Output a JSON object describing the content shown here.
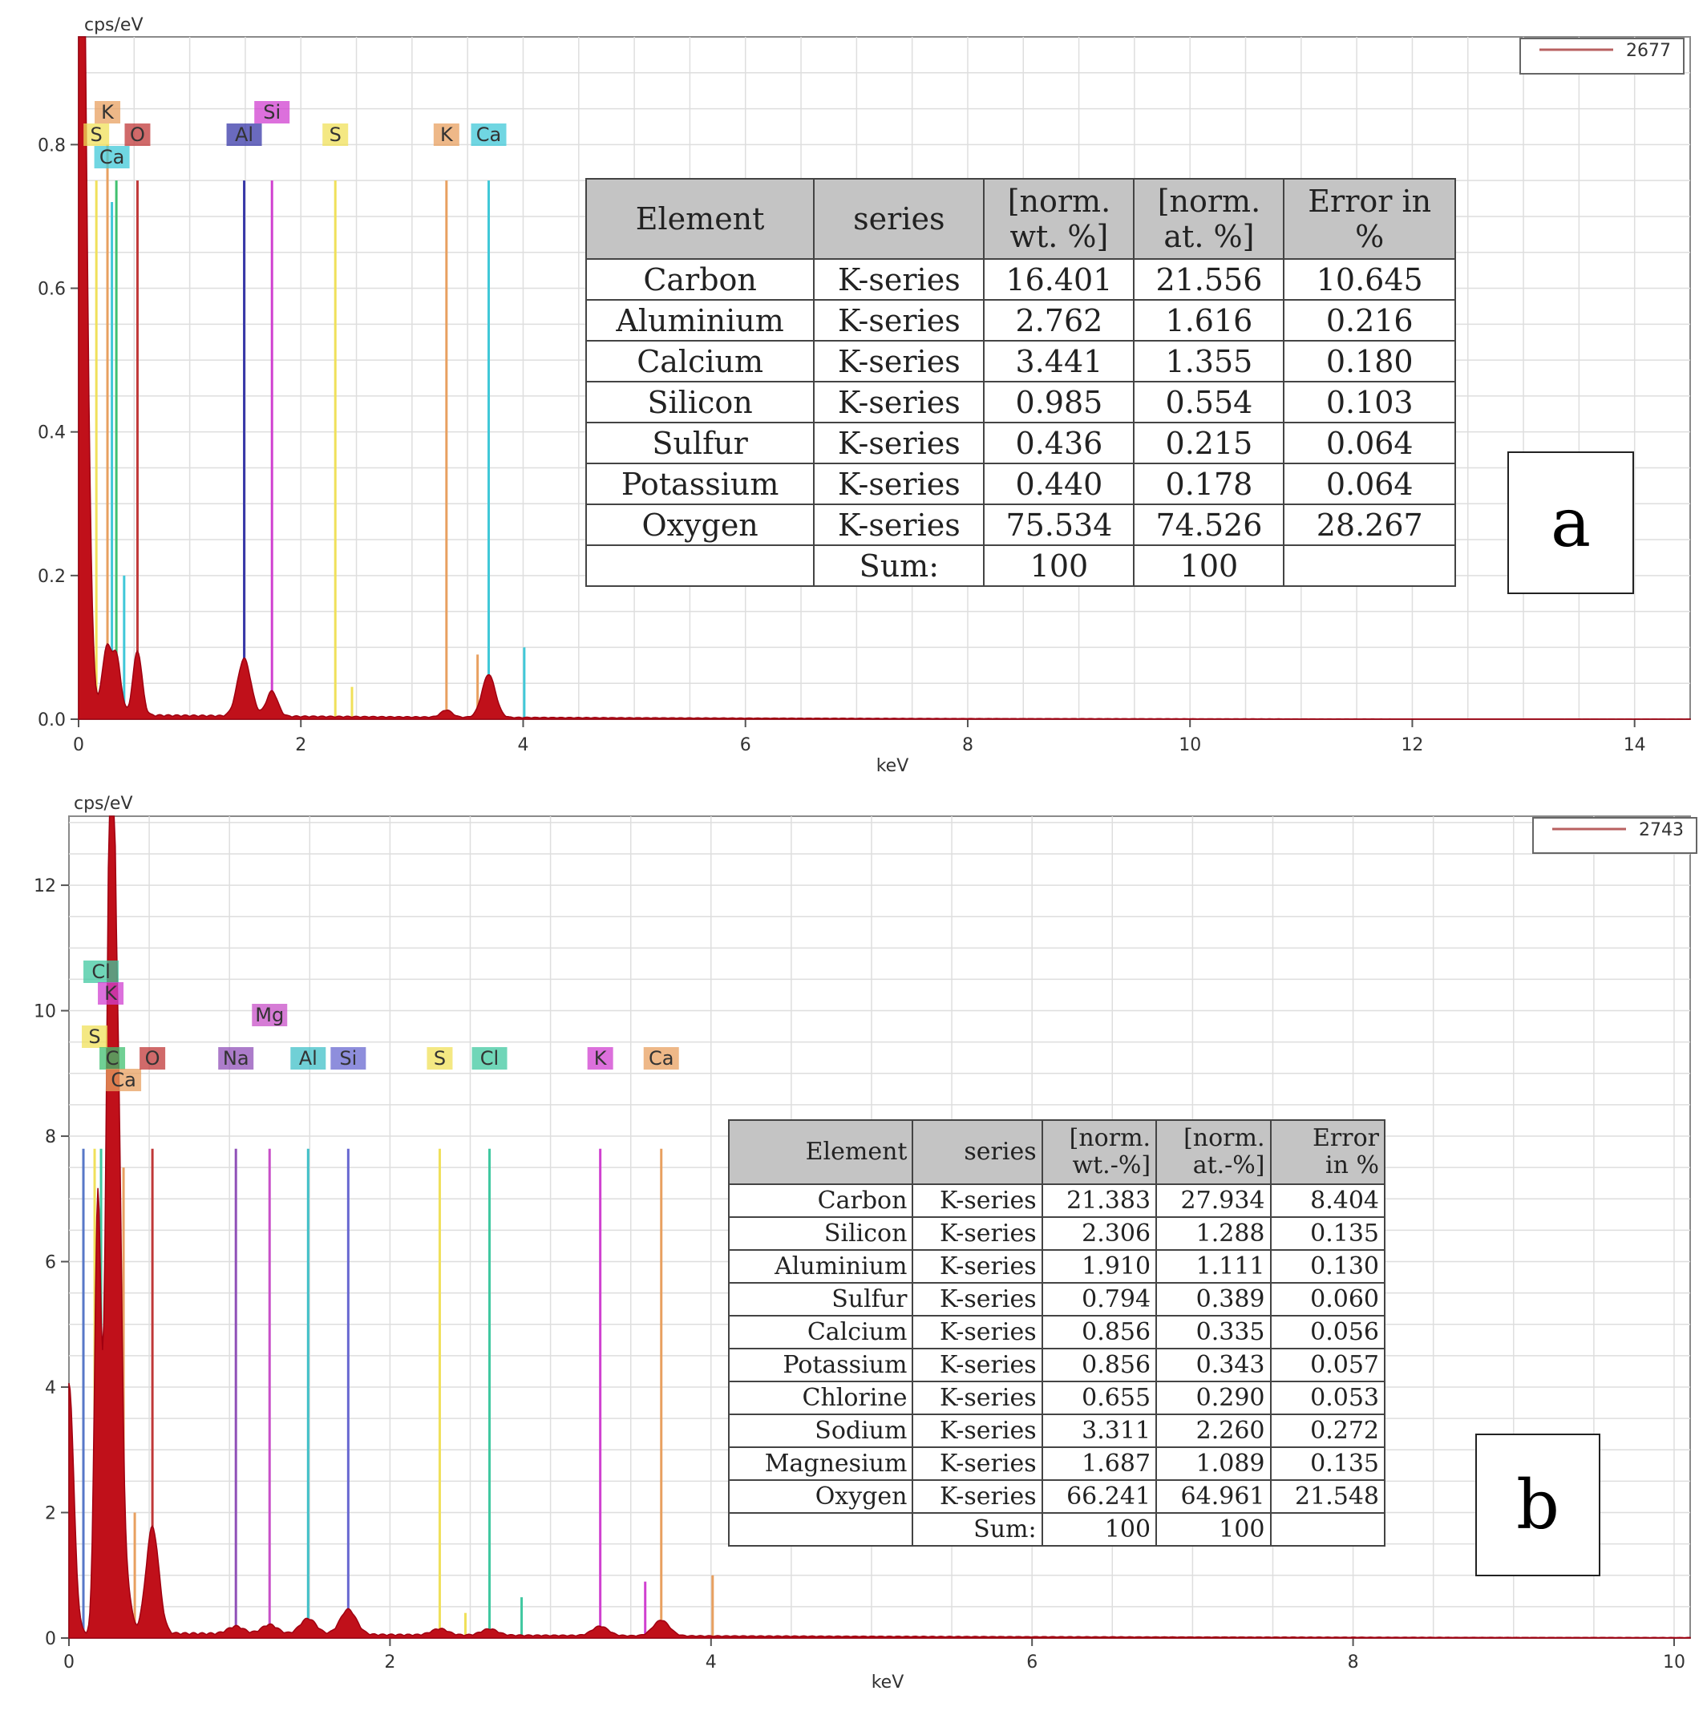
{
  "chart_data": [
    {
      "type": "line",
      "panel_label": "a",
      "y_unit": "cps/eV",
      "x_unit": "keV",
      "x_ticks": [
        "0",
        "2",
        "4",
        "6",
        "8",
        "10",
        "12",
        "14"
      ],
      "y_ticks": [
        "0.0",
        "0.2",
        "0.4",
        "0.6",
        "0.8"
      ],
      "xlim": [
        0,
        14.5
      ],
      "ylim": [
        0,
        0.95
      ],
      "legend": "2677",
      "series_color": "#c0101a",
      "peaks": [
        {
          "x": 0.0,
          "y": 0.93,
          "w": 0.04
        },
        {
          "x": 0.03,
          "y": 0.85,
          "w": 0.05
        },
        {
          "x": 0.25,
          "y": 0.09,
          "w": 0.04
        },
        {
          "x": 0.34,
          "y": 0.08,
          "w": 0.04
        },
        {
          "x": 0.53,
          "y": 0.09,
          "w": 0.04
        },
        {
          "x": 1.49,
          "y": 0.08,
          "w": 0.06
        },
        {
          "x": 1.74,
          "y": 0.035,
          "w": 0.05
        },
        {
          "x": 3.31,
          "y": 0.01,
          "w": 0.05
        },
        {
          "x": 3.69,
          "y": 0.06,
          "w": 0.06
        }
      ],
      "element_lines": [
        {
          "el": "S",
          "x": 0.16,
          "h": 0.75,
          "color": "#f0e05a",
          "label_row": 1
        },
        {
          "el": "K",
          "x": 0.26,
          "h": 0.8,
          "color": "#e8a060",
          "label_row": 0
        },
        {
          "el": "Ca",
          "x": 0.3,
          "h": 0.72,
          "color": "#40c8d8",
          "label_row": 2
        },
        {
          "el": "",
          "x": 0.34,
          "h": 0.75,
          "color": "#40c070",
          "label_row": -1
        },
        {
          "el": "O",
          "x": 0.53,
          "h": 0.75,
          "color": "#c03838",
          "label_row": 1
        },
        {
          "el": "Al",
          "x": 1.49,
          "h": 0.75,
          "color": "#3838a8",
          "label_row": 1
        },
        {
          "el": "Si",
          "x": 1.74,
          "h": 0.75,
          "color": "#d040d0",
          "label_row": 0
        },
        {
          "el": "S",
          "x": 2.31,
          "h": 0.75,
          "color": "#f0e05a",
          "label_row": 1
        },
        {
          "el": "K",
          "x": 3.31,
          "h": 0.75,
          "color": "#e8a060",
          "label_row": 1
        },
        {
          "el": "Ca",
          "x": 3.69,
          "h": 0.75,
          "color": "#40c8d8",
          "label_row": 1
        },
        {
          "el": "",
          "x": 0.41,
          "h": 0.2,
          "color": "#40c8d8",
          "label_row": -1
        },
        {
          "el": "",
          "x": 4.01,
          "h": 0.1,
          "color": "#40c8d8",
          "label_row": -1
        },
        {
          "el": "",
          "x": 3.59,
          "h": 0.09,
          "color": "#e8a060",
          "label_row": -1
        },
        {
          "el": "",
          "x": 2.46,
          "h": 0.045,
          "color": "#f0e05a",
          "label_row": -1
        }
      ],
      "table": {
        "headers": [
          "Element",
          "series",
          "[norm.\nwt. %]",
          "[norm.\nat. %]",
          "Error in\n%"
        ],
        "rows": [
          [
            "Carbon",
            "K-series",
            "16.401",
            "21.556",
            "10.645"
          ],
          [
            "Aluminium",
            "K-series",
            "2.762",
            "1.616",
            "0.216"
          ],
          [
            "Calcium",
            "K-series",
            "3.441",
            "1.355",
            "0.180"
          ],
          [
            "Silicon",
            "K-series",
            "0.985",
            "0.554",
            "0.103"
          ],
          [
            "Sulfur",
            "K-series",
            "0.436",
            "0.215",
            "0.064"
          ],
          [
            "Potassium",
            "K-series",
            "0.440",
            "0.178",
            "0.064"
          ],
          [
            "Oxygen",
            "K-series",
            "75.534",
            "74.526",
            "28.267"
          ],
          [
            "",
            "Sum:",
            "100",
            "100",
            ""
          ]
        ]
      }
    },
    {
      "type": "line",
      "panel_label": "b",
      "y_unit": "cps/eV",
      "x_unit": "keV",
      "x_ticks": [
        "0",
        "2",
        "4",
        "6",
        "8",
        "10"
      ],
      "y_ticks": [
        "0",
        "2",
        "4",
        "6",
        "8",
        "10",
        "12"
      ],
      "xlim": [
        0,
        10.1
      ],
      "ylim": [
        0,
        13.1
      ],
      "legend": "2743",
      "series_color": "#c0101a",
      "peaks": [
        {
          "x": 0.0,
          "y": 4.0,
          "w": 0.03
        },
        {
          "x": 0.18,
          "y": 7.0,
          "w": 0.02
        },
        {
          "x": 0.24,
          "y": 6.5,
          "w": 0.02
        },
        {
          "x": 0.27,
          "y": 12.5,
          "w": 0.02
        },
        {
          "x": 0.31,
          "y": 7.0,
          "w": 0.02
        },
        {
          "x": 0.35,
          "y": 1.0,
          "w": 0.03
        },
        {
          "x": 0.52,
          "y": 1.7,
          "w": 0.04
        },
        {
          "x": 1.04,
          "y": 0.12,
          "w": 0.05
        },
        {
          "x": 1.25,
          "y": 0.15,
          "w": 0.05
        },
        {
          "x": 1.49,
          "y": 0.25,
          "w": 0.05
        },
        {
          "x": 1.74,
          "y": 0.4,
          "w": 0.05
        },
        {
          "x": 2.31,
          "y": 0.1,
          "w": 0.05
        },
        {
          "x": 2.62,
          "y": 0.1,
          "w": 0.05
        },
        {
          "x": 3.31,
          "y": 0.15,
          "w": 0.05
        },
        {
          "x": 3.69,
          "y": 0.25,
          "w": 0.05
        }
      ],
      "element_lines": [
        {
          "el": "",
          "x": 0.09,
          "h": 7.8,
          "color": "#5878c8",
          "label_row": -1
        },
        {
          "el": "S",
          "x": 0.16,
          "h": 7.8,
          "color": "#f0e05a",
          "label_row": 3
        },
        {
          "el": "Cl",
          "x": 0.2,
          "h": 7.8,
          "color": "#40c8a0",
          "label_row": 0
        },
        {
          "el": "C",
          "x": 0.27,
          "h": 7.8,
          "color": "#40c070",
          "label_row": 4
        },
        {
          "el": "K",
          "x": 0.26,
          "h": 7.8,
          "color": "#d040d0",
          "label_row": 1
        },
        {
          "el": "Ca",
          "x": 0.34,
          "h": 7.5,
          "color": "#e8a060",
          "label_row": 5
        },
        {
          "el": "O",
          "x": 0.52,
          "h": 7.8,
          "color": "#c03838",
          "label_row": 4
        },
        {
          "el": "Na",
          "x": 1.04,
          "h": 7.8,
          "color": "#9050b8",
          "label_row": 4
        },
        {
          "el": "Mg",
          "x": 1.25,
          "h": 7.8,
          "color": "#c850c8",
          "label_row": 2
        },
        {
          "el": "Al",
          "x": 1.49,
          "h": 7.8,
          "color": "#40c0c8",
          "label_row": 4
        },
        {
          "el": "Si",
          "x": 1.74,
          "h": 7.8,
          "color": "#6868d0",
          "label_row": 4
        },
        {
          "el": "S",
          "x": 2.31,
          "h": 7.8,
          "color": "#f0e05a",
          "label_row": 4
        },
        {
          "el": "Cl",
          "x": 2.62,
          "h": 7.8,
          "color": "#40c8a0",
          "label_row": 4
        },
        {
          "el": "K",
          "x": 3.31,
          "h": 7.8,
          "color": "#d040d0",
          "label_row": 4
        },
        {
          "el": "Ca",
          "x": 3.69,
          "h": 7.8,
          "color": "#e8a060",
          "label_row": 4
        },
        {
          "el": "",
          "x": 0.41,
          "h": 2.0,
          "color": "#e8a060",
          "label_row": -1
        },
        {
          "el": "",
          "x": 2.47,
          "h": 0.4,
          "color": "#f0e05a",
          "label_row": -1
        },
        {
          "el": "",
          "x": 2.82,
          "h": 0.65,
          "color": "#40c8a0",
          "label_row": -1
        },
        {
          "el": "",
          "x": 3.59,
          "h": 0.9,
          "color": "#d040d0",
          "label_row": -1
        },
        {
          "el": "",
          "x": 4.01,
          "h": 1.0,
          "color": "#e8a060",
          "label_row": -1
        }
      ],
      "table": {
        "headers": [
          "Element",
          "series",
          "[norm.\nwt.-%]",
          "[norm.\nat.-%]",
          "Error\nin %"
        ],
        "rows": [
          [
            "Carbon",
            "K-series",
            "21.383",
            "27.934",
            "8.404"
          ],
          [
            "Silicon",
            "K-series",
            "2.306",
            "1.288",
            "0.135"
          ],
          [
            "Aluminium",
            "K-series",
            "1.910",
            "1.111",
            "0.130"
          ],
          [
            "Sulfur",
            "K-series",
            "0.794",
            "0.389",
            "0.060"
          ],
          [
            "Calcium",
            "K-series",
            "0.856",
            "0.335",
            "0.056"
          ],
          [
            "Potassium",
            "K-series",
            "0.856",
            "0.343",
            "0.057"
          ],
          [
            "Chlorine",
            "K-series",
            "0.655",
            "0.290",
            "0.053"
          ],
          [
            "Sodium",
            "K-series",
            "3.311",
            "2.260",
            "0.272"
          ],
          [
            "Magnesium",
            "K-series",
            "1.687",
            "1.089",
            "0.135"
          ],
          [
            "Oxygen",
            "K-series",
            "66.241",
            "64.961",
            "21.548"
          ],
          [
            "",
            "Sum:",
            "100",
            "100",
            ""
          ]
        ]
      }
    }
  ]
}
